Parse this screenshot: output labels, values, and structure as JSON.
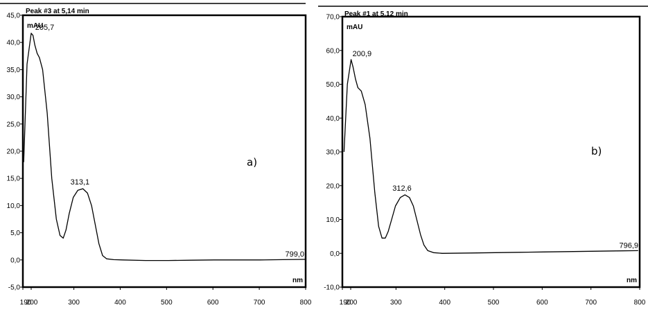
{
  "chart_data": [
    {
      "type": "line",
      "title": "Peak #3 at 5,14 min",
      "panel_label": "a)",
      "xlabel": "nm",
      "ylabel": "mAU",
      "xlim": [
        190,
        800
      ],
      "ylim": [
        -5,
        45
      ],
      "grid": false,
      "x_ticks": [
        "190",
        "200",
        "300",
        "400",
        "500",
        "600",
        "700",
        "800"
      ],
      "y_ticks": [
        "-5,0",
        "0,0",
        "5,0",
        "10,0",
        "15,0",
        "20,0",
        "25,0",
        "30,0",
        "35,0",
        "40,0",
        "45,0"
      ],
      "series": [
        {
          "x": [
            191,
            195,
            200,
            204,
            208,
            213,
            218,
            225,
            235,
            245,
            255,
            263,
            270,
            276,
            283,
            292,
            302,
            313,
            323,
            332,
            340,
            348,
            356,
            365,
            380,
            400,
            450,
            500,
            550,
            600,
            650,
            700,
            750,
            799
          ],
          "values": [
            18,
            36,
            41.7,
            41.3,
            39.5,
            38,
            37.2,
            35,
            27,
            15,
            7.5,
            4.5,
            4,
            5.5,
            8.5,
            11.5,
            12.8,
            13.1,
            12.3,
            10,
            6.5,
            3,
            0.8,
            0.2,
            0.05,
            0,
            -0.1,
            -0.1,
            -0.05,
            0,
            0,
            0,
            0.05,
            0.1
          ]
        }
      ],
      "annotations": [
        {
          "label": "205,7",
          "x": 205.7,
          "y": 41.7
        },
        {
          "label": "313,1",
          "x": 313.1,
          "y": 13.1
        },
        {
          "label": "799,0",
          "x": 799.0,
          "y": 0.1
        }
      ]
    },
    {
      "type": "line",
      "title": "Peak #1 at 5,12 min",
      "panel_label": "b)",
      "xlabel": "nm",
      "ylabel": "mAU",
      "xlim": [
        190,
        800
      ],
      "ylim": [
        -10,
        70
      ],
      "grid": false,
      "x_ticks": [
        "190",
        "200",
        "300",
        "400",
        "500",
        "600",
        "700",
        "800"
      ],
      "y_ticks": [
        "-10,0",
        "0,0",
        "10,0",
        "20,0",
        "30,0",
        "40,0",
        "50,0",
        "60,0",
        "70,0"
      ],
      "series": [
        {
          "x": [
            192,
            196,
            200.9,
            205,
            210,
            215,
            222,
            230,
            240,
            250,
            258,
            265,
            272,
            278,
            285,
            293,
            303,
            312.6,
            322,
            330,
            338,
            345,
            352,
            360,
            372,
            390,
            450,
            500,
            550,
            600,
            650,
            700,
            750,
            796.9
          ],
          "values": [
            30,
            50,
            57.3,
            55,
            51.5,
            49,
            48,
            44,
            34,
            18,
            8,
            4.5,
            4.5,
            6.5,
            10,
            14,
            16.5,
            17.3,
            16.5,
            14,
            9.5,
            5.5,
            2.5,
            0.8,
            0.2,
            0,
            0.1,
            0.2,
            0.3,
            0.4,
            0.5,
            0.6,
            0.7,
            0.8
          ]
        }
      ],
      "annotations": [
        {
          "label": "200,9",
          "x": 200.9,
          "y": 57.3
        },
        {
          "label": "312,6",
          "x": 312.6,
          "y": 17.3
        },
        {
          "label": "796,9",
          "x": 796.9,
          "y": 0.8
        }
      ]
    }
  ]
}
